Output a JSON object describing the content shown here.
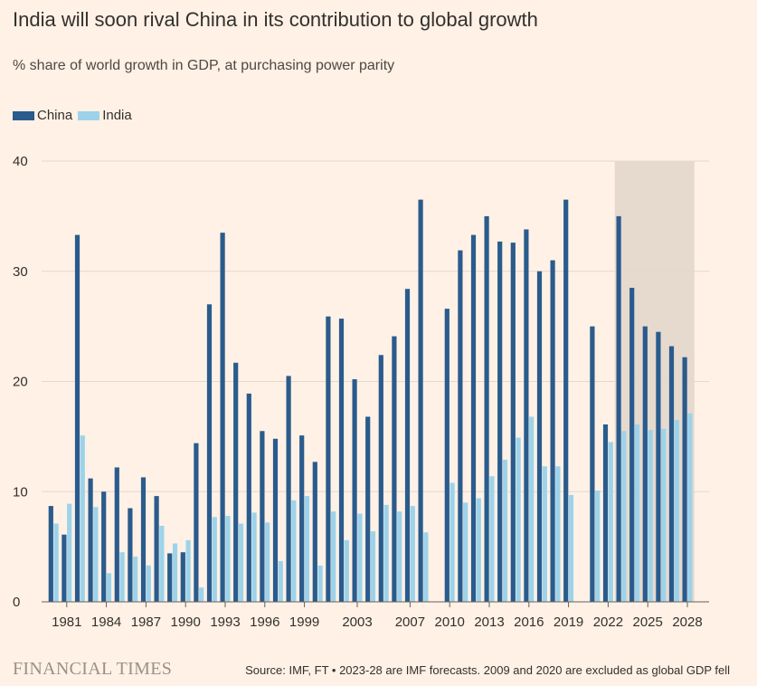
{
  "title": "India will soon rival China in its contribution to global growth",
  "subtitle": "% share of world growth in GDP, at purchasing power parity",
  "legend": [
    {
      "name": "China",
      "color": "#2a5b8c"
    },
    {
      "name": "India",
      "color": "#9dd3ea"
    }
  ],
  "footer": {
    "brand": "FINANCIAL TIMES",
    "source": "Source: IMF, FT • 2023-28 are IMF forecasts. 2009 and 2020 are excluded as global GDP fell"
  },
  "chart_data": {
    "type": "bar",
    "title": "India will soon rival China in its contribution to global growth",
    "subtitle": "% share of world growth in GDP, at purchasing power parity",
    "xlabel": "",
    "ylabel": "",
    "ylim": [
      0,
      40
    ],
    "yticks": [
      0,
      10,
      20,
      30,
      40
    ],
    "grid": true,
    "legend_position": "top-left",
    "forecast_shaded": {
      "from": 2023,
      "to": 2028,
      "color": "#e6d9ce"
    },
    "xtick_labels": [
      "1981",
      "1984",
      "1987",
      "1990",
      "1993",
      "1996",
      "1999",
      "2003",
      "2007",
      "2010",
      "2013",
      "2016",
      "2019",
      "2022",
      "2025",
      "2028"
    ],
    "categories": [
      1980,
      1981,
      1982,
      1983,
      1984,
      1985,
      1986,
      1987,
      1988,
      1989,
      1990,
      1991,
      1992,
      1993,
      1994,
      1995,
      1996,
      1997,
      1998,
      1999,
      2000,
      2001,
      2002,
      2003,
      2004,
      2005,
      2006,
      2007,
      2008,
      2009,
      2010,
      2011,
      2012,
      2013,
      2014,
      2015,
      2016,
      2017,
      2018,
      2019,
      2020,
      2021,
      2022,
      2023,
      2024,
      2025,
      2026,
      2027,
      2028
    ],
    "series": [
      {
        "name": "China",
        "color": "#2a5b8c",
        "values": [
          8.7,
          6.1,
          33.3,
          11.2,
          10.0,
          12.2,
          8.5,
          11.3,
          9.6,
          4.4,
          4.5,
          14.4,
          27.0,
          33.5,
          21.7,
          18.9,
          15.5,
          14.8,
          20.5,
          15.1,
          12.7,
          25.9,
          25.7,
          20.2,
          16.8,
          22.4,
          24.1,
          28.4,
          36.5,
          null,
          26.6,
          31.9,
          33.3,
          35.0,
          32.7,
          32.6,
          33.8,
          30.0,
          31.0,
          36.5,
          null,
          25.0,
          16.1,
          35.0,
          28.5,
          25.0,
          24.5,
          23.2,
          22.2
        ]
      },
      {
        "name": "India",
        "color": "#9dd3ea",
        "values": [
          7.1,
          8.9,
          15.1,
          8.6,
          2.6,
          4.5,
          4.1,
          3.3,
          6.9,
          5.3,
          5.6,
          1.3,
          7.7,
          7.8,
          7.1,
          8.1,
          7.2,
          3.7,
          9.2,
          9.6,
          3.3,
          8.2,
          5.6,
          8.0,
          6.4,
          8.8,
          8.2,
          8.7,
          6.3,
          null,
          10.8,
          9.0,
          9.4,
          11.4,
          12.9,
          14.9,
          16.8,
          12.3,
          12.3,
          9.7,
          null,
          10.1,
          14.5,
          15.5,
          16.1,
          15.6,
          15.7,
          16.5,
          17.1
        ]
      }
    ]
  }
}
